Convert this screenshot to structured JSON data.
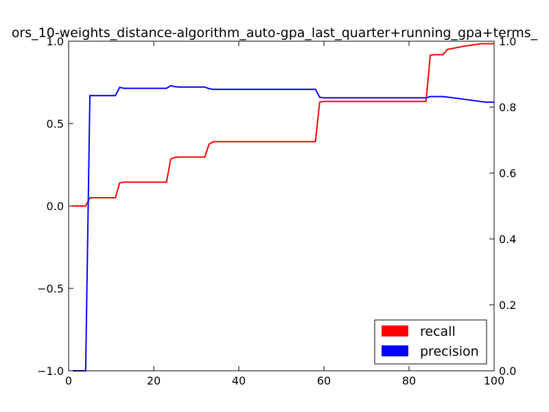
{
  "chart_data": {
    "type": "line",
    "title": "ors_10-weights_distance-algorithm_auto-gpa_last_quarter+running_gpa+terms_",
    "xlabel": "",
    "ylabel": "",
    "xlim": [
      0,
      100
    ],
    "ylim_left": [
      -1.0,
      1.0
    ],
    "ylim_right": [
      0.0,
      1.0
    ],
    "x_ticks": [
      "0",
      "20",
      "40",
      "60",
      "80",
      "100"
    ],
    "y_left_ticks": [
      "−1.0",
      "−0.5",
      "0.0",
      "0.5",
      "1.0"
    ],
    "y_right_ticks": [
      "0.0",
      "0.2",
      "0.4",
      "0.6",
      "0.8",
      "1.0"
    ],
    "grid": false,
    "legend_position": "lower-right",
    "series": [
      {
        "name": "recall",
        "color": "#ff0000",
        "axis": "left",
        "x": [
          1,
          4,
          5,
          11,
          12,
          13,
          23,
          24,
          25,
          26,
          32,
          33,
          34,
          58,
          59,
          60,
          84,
          85,
          86,
          88,
          89,
          91,
          93,
          97,
          100
        ],
        "y": [
          0.0,
          0.0,
          0.05,
          0.05,
          0.14,
          0.145,
          0.145,
          0.285,
          0.295,
          0.297,
          0.297,
          0.375,
          0.39,
          0.39,
          0.63,
          0.635,
          0.635,
          0.915,
          0.918,
          0.918,
          0.95,
          0.96,
          0.97,
          0.985,
          0.985
        ]
      },
      {
        "name": "precision",
        "color": "#0000ff",
        "axis": "right",
        "x": [
          1,
          4,
          5,
          11,
          12,
          13,
          23,
          24,
          25,
          26,
          32,
          33,
          34,
          58,
          59,
          60,
          84,
          85,
          86,
          88,
          90,
          94,
          98,
          100
        ],
        "y": [
          0.0,
          0.0,
          0.835,
          0.835,
          0.86,
          0.857,
          0.857,
          0.865,
          0.862,
          0.861,
          0.861,
          0.856,
          0.854,
          0.854,
          0.83,
          0.828,
          0.828,
          0.832,
          0.832,
          0.832,
          0.829,
          0.822,
          0.815,
          0.815
        ]
      }
    ]
  }
}
